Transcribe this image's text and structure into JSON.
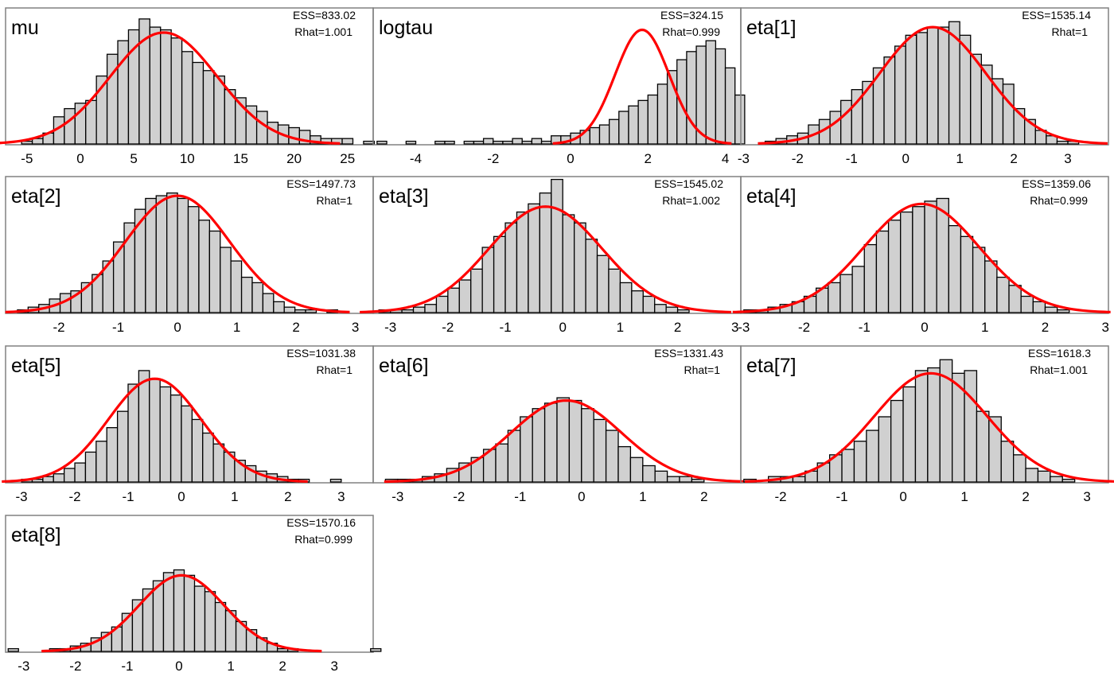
{
  "figure": {
    "bar_fill": "#d0d0d0",
    "bar_stroke": "#000000",
    "curve_color": "#ff0000",
    "frame_color": "#808080"
  },
  "chart_data": [
    {
      "type": "bar",
      "title": "mu",
      "ess": "ESS=833.02",
      "rhat": "Rhat=1.001",
      "xlim": [
        -7.0,
        27.4
      ],
      "ticks": [
        -5,
        0,
        5,
        10,
        15,
        20,
        25
      ],
      "bin_start": -5.5,
      "bin_width": 1,
      "counts": [
        1,
        2,
        4,
        10,
        13,
        15,
        16,
        25,
        33,
        38,
        42,
        46,
        43,
        42,
        39,
        34,
        30,
        27,
        25,
        20,
        17,
        14,
        12,
        8,
        7,
        6,
        5,
        3,
        2,
        2,
        2,
        0,
        1
      ],
      "density_mean": 7.8,
      "density_sd": 5.0,
      "density_peak": 41
    },
    {
      "type": "bar",
      "title": "logtau",
      "ess": "ESS=324.15",
      "rhat": "Rhat=0.999",
      "xlim": [
        -5.1,
        4.4
      ],
      "ticks": [
        -4,
        -2,
        0,
        2,
        4
      ],
      "bin_start": -5.0,
      "bin_width": 0.25,
      "counts": [
        1,
        0,
        0,
        1,
        0,
        0,
        1,
        1,
        0,
        1,
        1,
        2,
        1,
        1,
        2,
        1,
        2,
        1,
        3,
        3,
        4,
        5,
        6,
        7,
        9,
        12,
        14,
        16,
        18,
        22,
        27,
        31,
        34,
        36,
        38,
        35,
        28,
        18,
        10,
        3
      ],
      "density_mean": 1.85,
      "density_sd": 0.7,
      "density_peak": 42
    },
    {
      "type": "bar",
      "title": "eta[1]",
      "ess": "ESS=1535.14",
      "rhat": "Rhat=1",
      "xlim": [
        -3.05,
        3.75
      ],
      "ticks": [
        -3,
        -2,
        -1,
        0,
        1,
        2,
        3
      ],
      "bin_start": -2.6,
      "bin_width": 0.2,
      "counts": [
        1,
        2,
        3,
        4,
        7,
        9,
        12,
        16,
        20,
        23,
        28,
        32,
        36,
        40,
        41,
        43,
        43,
        45,
        40,
        33,
        29,
        24,
        22,
        13,
        9,
        5,
        3,
        1,
        1,
        0
      ],
      "density_mean": 0.5,
      "density_sd": 0.98,
      "density_peak": 43
    },
    {
      "type": "bar",
      "title": "eta[2]",
      "ess": "ESS=1497.73",
      "rhat": "Rhat=1",
      "xlim": [
        -2.9,
        3.3
      ],
      "ticks": [
        -2,
        -1,
        0,
        1,
        2,
        3
      ],
      "bin_start": -2.7,
      "bin_width": 0.18,
      "counts": [
        1,
        2,
        3,
        5,
        7,
        8,
        11,
        14,
        19,
        26,
        33,
        38,
        42,
        43,
        44,
        42,
        39,
        34,
        30,
        24,
        19,
        13,
        11,
        7,
        4,
        2,
        1,
        1,
        0,
        1
      ],
      "density_mean": 0.0,
      "density_sd": 0.88,
      "density_peak": 43
    },
    {
      "type": "bar",
      "title": "eta[3]",
      "ess": "ESS=1545.02",
      "rhat": "Rhat=1.002",
      "xlim": [
        -3.3,
        3.1
      ],
      "ticks": [
        -3,
        -2,
        -1,
        0,
        1,
        2,
        3
      ],
      "bin_start": -3.2,
      "bin_width": 0.2,
      "counts": [
        1,
        1,
        1,
        2,
        3,
        6,
        9,
        12,
        16,
        24,
        28,
        33,
        37,
        40,
        44,
        49,
        36,
        33,
        27,
        21,
        16,
        11,
        8,
        6,
        3,
        2,
        1,
        0,
        0,
        0
      ],
      "density_mean": -0.3,
      "density_sd": 0.98,
      "density_peak": 39
    },
    {
      "type": "bar",
      "title": "eta[4]",
      "ess": "ESS=1359.06",
      "rhat": "Rhat=0.999",
      "xlim": [
        -3.05,
        3.05
      ],
      "ticks": [
        -3,
        -2,
        -1,
        0,
        1,
        2,
        3
      ],
      "bin_start": -3.0,
      "bin_width": 0.2,
      "counts": [
        1,
        1,
        2,
        3,
        4,
        6,
        9,
        11,
        14,
        17,
        25,
        30,
        34,
        37,
        39,
        41,
        42,
        32,
        28,
        24,
        19,
        13,
        10,
        6,
        4,
        2,
        1,
        0,
        0,
        0
      ],
      "density_mean": -0.05,
      "density_sd": 0.95,
      "density_peak": 40
    },
    {
      "type": "bar",
      "title": "eta[5]",
      "ess": "ESS=1031.38",
      "rhat": "Rhat=1",
      "xlim": [
        -3.3,
        3.6
      ],
      "ticks": [
        -3,
        -2,
        -1,
        0,
        1,
        2,
        3
      ],
      "bin_start": -3.0,
      "bin_width": 0.2,
      "counts": [
        1,
        1,
        2,
        3,
        5,
        7,
        11,
        15,
        20,
        26,
        36,
        41,
        38,
        35,
        32,
        28,
        23,
        18,
        14,
        11,
        8,
        6,
        4,
        3,
        2,
        1,
        1,
        0,
        0,
        1
      ],
      "density_mean": -0.5,
      "density_sd": 0.87,
      "density_peak": 38
    },
    {
      "type": "bar",
      "title": "eta[6]",
      "ess": "ESS=1331.43",
      "rhat": "Rhat=1",
      "xlim": [
        -3.4,
        2.6
      ],
      "ticks": [
        -3,
        -2,
        -1,
        0,
        1,
        2
      ],
      "bin_start": -3.2,
      "bin_width": 0.2,
      "counts": [
        1,
        1,
        1,
        2,
        3,
        5,
        7,
        9,
        12,
        14,
        19,
        24,
        27,
        29,
        31,
        30,
        27,
        23,
        19,
        13,
        9,
        6,
        4,
        2,
        2,
        1,
        0,
        0,
        0
      ],
      "density_mean": -0.25,
      "density_sd": 0.9,
      "density_peak": 30
    },
    {
      "type": "bar",
      "title": "eta[7]",
      "ess": "ESS=1618.3",
      "rhat": "Rhat=1.001",
      "xlim": [
        -2.65,
        3.35
      ],
      "ticks": [
        -2,
        -1,
        0,
        1,
        2,
        3
      ],
      "bin_start": -2.6,
      "bin_width": 0.2,
      "counts": [
        1,
        0,
        2,
        2,
        2,
        4,
        7,
        10,
        12,
        15,
        19,
        24,
        30,
        35,
        41,
        42,
        45,
        40,
        41,
        26,
        24,
        15,
        10,
        5,
        4,
        2,
        1,
        0,
        0,
        0
      ],
      "density_mean": 0.45,
      "density_sd": 0.92,
      "density_peak": 40
    },
    {
      "type": "bar",
      "title": "eta[8]",
      "ess": "ESS=1570.16",
      "rhat": "Rhat=0.999",
      "xlim": [
        -3.35,
        3.75
      ],
      "ticks": [
        -3,
        -2,
        -1,
        0,
        1,
        2,
        3
      ],
      "bin_start": -3.3,
      "bin_width": 0.2,
      "counts": [
        1,
        0,
        0,
        0,
        1,
        1,
        2,
        3,
        5,
        7,
        9,
        14,
        19,
        23,
        26,
        29,
        30,
        28,
        24,
        22,
        18,
        15,
        11,
        8,
        5,
        3,
        1,
        1,
        0,
        0,
        0,
        0,
        0,
        0,
        0,
        1
      ],
      "density_mean": 0.05,
      "density_sd": 0.82,
      "density_peak": 28
    }
  ]
}
